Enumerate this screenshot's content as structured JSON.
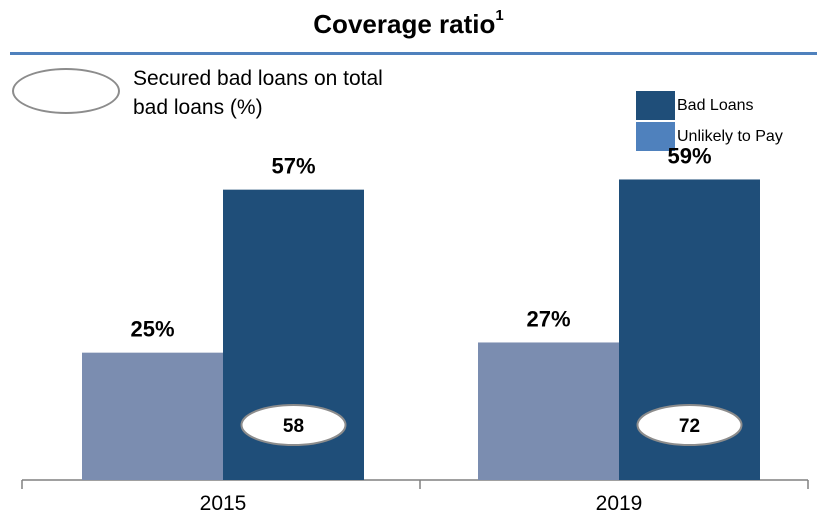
{
  "header": {
    "title": "Coverage ratio",
    "title_sup": "1"
  },
  "oval_legend": {
    "caption_line1": "Secured bad loans on total",
    "caption_line2": "bad loans (%)"
  },
  "legend": {
    "items": [
      {
        "label": "Bad Loans",
        "color": "#1f4e79"
      },
      {
        "label": "Unlikely to Pay",
        "color": "#4f81bd"
      }
    ]
  },
  "chart_data": {
    "type": "bar",
    "categories": [
      "2015",
      "2019"
    ],
    "series": [
      {
        "name": "Unlikely to Pay",
        "values": [
          25,
          27
        ],
        "labels": [
          "25%",
          "27%"
        ],
        "color": "#7b8db0"
      },
      {
        "name": "Bad Loans",
        "values": [
          57,
          59
        ],
        "labels": [
          "57%",
          "59%"
        ],
        "color": "#1f4e79"
      }
    ],
    "secured_bad_loans_pct": [
      58,
      72
    ],
    "ylim": [
      0,
      64
    ],
    "grid": false,
    "legend_position": "top-right"
  }
}
